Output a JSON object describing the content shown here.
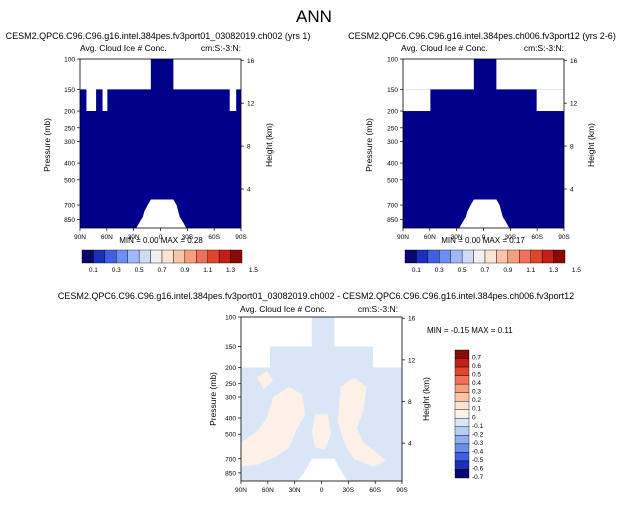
{
  "page_title": "ANN",
  "panels": [
    {
      "title": "CESM2.QPC6.C96.C96.g16.intel.384pes.fv3port01_03082019.ch002 (yrs 1)",
      "subtitle_left": "Avg. Cloud Ice # Conc.",
      "subtitle_right": "cm:S:-3:N:",
      "ylabel": "Pressure (mb)",
      "ylabel_right": "Height (km)",
      "stats": "MIN =   0.00  MAX =   0.28"
    },
    {
      "title": "CESM2.QPC6.C96.C96.g16.intel.384pes.ch006.fv3port12 (yrs 2-6)",
      "subtitle_left": "Avg. Cloud Ice # Conc.",
      "subtitle_right": "cm:S:-3:N:",
      "ylabel": "Pressure (mb)",
      "ylabel_right": "Height (km)",
      "stats": "MIN =   0.00  MAX =   0.17"
    },
    {
      "title": "CESM2.QPC6.C96.C96.g16.intel.384pes.fv3port01_03082019.ch002 - CESM2.QPC6.C96.C96.g16.intel.384pes.ch006.fv3port12",
      "subtitle_left": "Avg. Cloud Ice # Conc.",
      "subtitle_right": "cm:S:-3:N:",
      "ylabel": "Pressure (mb)",
      "ylabel_right": "Height (km)",
      "stats": "MIN = -0.15  MAX =   0.11"
    }
  ],
  "colorbar_top": {
    "labels": [
      "0.1",
      "0.3",
      "0.5",
      "0.7",
      "0.9",
      "1.1",
      "1.3",
      "1.5"
    ],
    "colors": [
      "#08086e",
      "#1d2fb8",
      "#3f5fe0",
      "#6f8ff0",
      "#9fb8f8",
      "#cfdcf8",
      "#f0f0f0",
      "#fde3d2",
      "#fbc4a8",
      "#f79e7e",
      "#f0705a",
      "#e04530",
      "#c41e16",
      "#8a0a0a"
    ]
  },
  "colorbar_diff": {
    "labels": [
      "0.7",
      "0.6",
      "0.5",
      "0.4",
      "0.3",
      "0.2",
      "0.1",
      "0",
      "-0.1",
      "-0.2",
      "-0.3",
      "-0.4",
      "-0.5",
      "-0.6",
      "-0.7"
    ],
    "colors": [
      "#8a0a0a",
      "#c41e16",
      "#e04530",
      "#f0705a",
      "#f79e7e",
      "#fbc4a8",
      "#fde3d2",
      "#fdf0e6",
      "#d8e6f8",
      "#b6cdf4",
      "#8fb0ee",
      "#6a8ee6",
      "#3f5fe0",
      "#1d2fb8",
      "#08086e"
    ]
  },
  "chart_data": [
    {
      "type": "heatmap",
      "title": "CESM2.QPC6.C96.C96.g16.intel.384pes.fv3port01_03082019.ch002 (yrs 1)",
      "xlabel": "",
      "ylabel": "Pressure (mb)",
      "y2label": "Height (km)",
      "x_ticks": [
        "90N",
        "60N",
        "30N",
        "0",
        "30S",
        "60S",
        "90S"
      ],
      "y_ticks": [
        "100",
        "150",
        "200",
        "250",
        "300",
        "400",
        "500",
        "700",
        "850"
      ],
      "y2_ticks": [
        "16",
        "12",
        "8",
        "4"
      ],
      "min": 0.0,
      "max": 0.28,
      "color_field": "#00008b"
    },
    {
      "type": "heatmap",
      "title": "CESM2.QPC6.C96.C96.g16.intel.384pes.ch006.fv3port12 (yrs 2-6)",
      "xlabel": "",
      "ylabel": "Pressure (mb)",
      "y2label": "Height (km)",
      "x_ticks": [
        "90N",
        "60N",
        "30N",
        "0",
        "30S",
        "60S",
        "90S"
      ],
      "y_ticks": [
        "100",
        "150",
        "200",
        "250",
        "300",
        "400",
        "500",
        "700",
        "850"
      ],
      "y2_ticks": [
        "16",
        "12",
        "8",
        "4"
      ],
      "min": 0.0,
      "max": 0.17,
      "color_field": "#00008b"
    },
    {
      "type": "heatmap",
      "title": "CESM2.QPC6.C96.C96.g16.intel.384pes.fv3port01_03082019.ch002 - CESM2.QPC6.C96.C96.g16.intel.384pes.ch006.fv3port12",
      "xlabel": "",
      "ylabel": "Pressure (mb)",
      "y2label": "Height (km)",
      "x_ticks": [
        "90N",
        "60N",
        "30N",
        "0",
        "30S",
        "60S",
        "90S"
      ],
      "y_ticks": [
        "100",
        "150",
        "200",
        "250",
        "300",
        "400",
        "500",
        "700",
        "850"
      ],
      "y2_ticks": [
        "16",
        "12",
        "8",
        "4"
      ],
      "min": -0.15,
      "max": 0.11
    }
  ]
}
